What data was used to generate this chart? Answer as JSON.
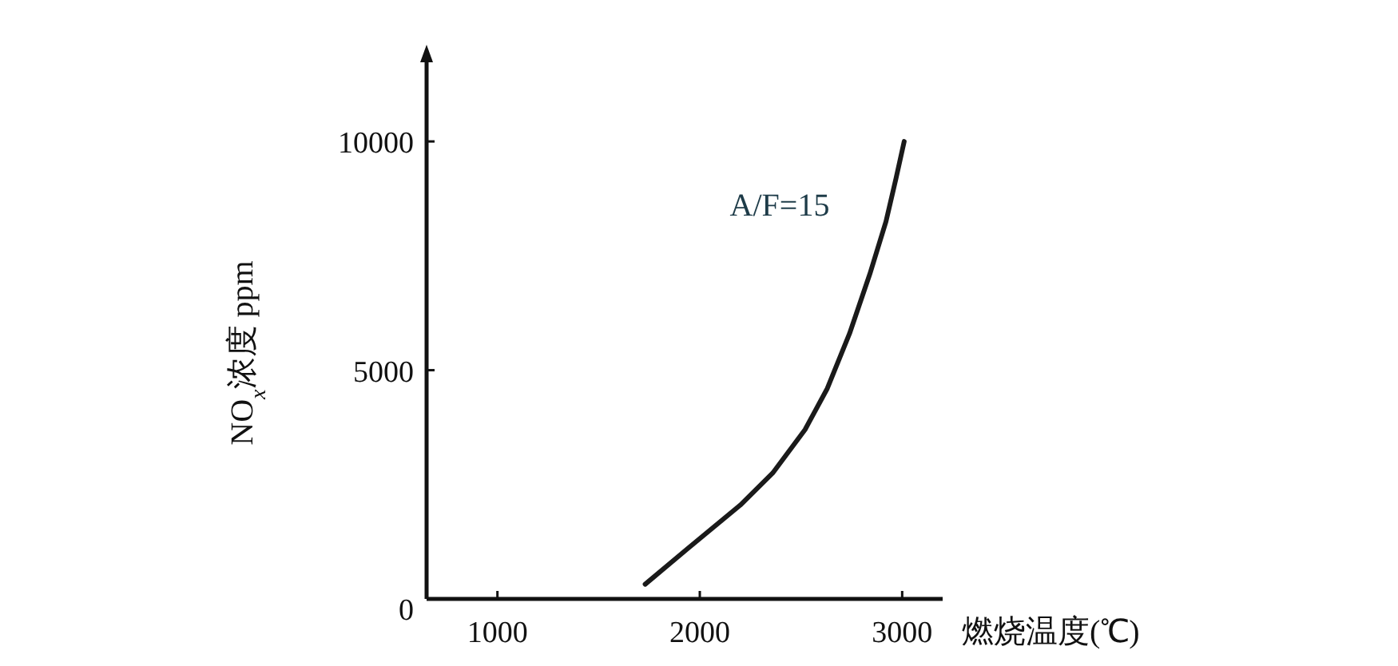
{
  "chart_data": {
    "type": "line",
    "xlabel": "燃烧温度(℃)",
    "ylabel": "NO$_{x}$浓度 ppm",
    "xlim": [
      650,
      3200
    ],
    "ylim": [
      0,
      11800
    ],
    "xticks": [
      1000,
      2000,
      3000
    ],
    "yticks": [
      0,
      5000,
      10000
    ],
    "grid": false,
    "legend": false,
    "marker": "none",
    "line_style": "solid",
    "series": [
      {
        "name": "A/F=15",
        "color": "#1a1a1a",
        "x": [
          1730,
          1940,
          2200,
          2360,
          2520,
          2630,
          2740,
          2840,
          2920,
          2970,
          3010
        ],
        "values": [
          320,
          1100,
          2050,
          2750,
          3700,
          4600,
          5800,
          7100,
          8250,
          9200,
          10000
        ]
      }
    ]
  }
}
